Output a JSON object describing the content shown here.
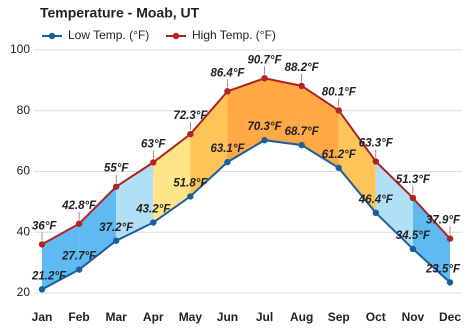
{
  "chart_data": {
    "type": "line",
    "title": "Temperature - Moab, UT",
    "categories": [
      "Jan",
      "Feb",
      "Mar",
      "Apr",
      "May",
      "Jun",
      "Jul",
      "Aug",
      "Sep",
      "Oct",
      "Nov",
      "Dec"
    ],
    "series": [
      {
        "name": "Low Temp. (°F)",
        "color": "#1b5e9e",
        "values": [
          21.2,
          27.7,
          37.2,
          43.2,
          51.8,
          63.1,
          70.3,
          68.7,
          61.2,
          46.4,
          34.5,
          23.5
        ],
        "value_labels": [
          "21.2°F",
          "27.7°F",
          "37.2°F",
          "43.2°F",
          "51.8°F",
          "63.1°F",
          "70.3°F",
          "68.7°F",
          "61.2°F",
          "46.4°F",
          "34.5°F",
          "23.5°F"
        ]
      },
      {
        "name": "High Temp. (°F)",
        "color": "#b22222",
        "values": [
          36,
          42.8,
          55,
          63,
          72.3,
          86.4,
          90.7,
          88.2,
          80.1,
          63.3,
          51.3,
          37.9
        ],
        "value_labels": [
          "36°F",
          "42.8°F",
          "55°F",
          "63°F",
          "72.3°F",
          "86.4°F",
          "90.7°F",
          "88.2°F",
          "80.1°F",
          "63.3°F",
          "51.3°F",
          "37.9°F"
        ]
      }
    ],
    "ylim": [
      20,
      100
    ],
    "yticks": [
      20,
      40,
      60,
      80,
      100
    ],
    "grid": true
  }
}
